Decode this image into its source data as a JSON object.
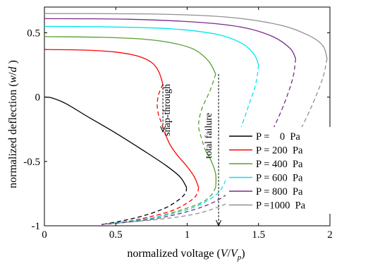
{
  "chart_data": {
    "type": "line",
    "title": "",
    "xlabel": "normalized voltage (V/V_p)",
    "xlabel_parts": {
      "prefix": "normalized voltage (",
      "var1": "V",
      "slash": "/",
      "var2": "V",
      "sub": "p",
      "suffix": ")"
    },
    "ylabel": "normalized deflection (w/d)",
    "ylabel_parts": {
      "prefix": "normalized deflection (",
      "var1": "w",
      "slash": "/",
      "var2": "d",
      "suffix": " )"
    },
    "xlim": [
      0,
      2
    ],
    "ylim": [
      -1,
      0.7
    ],
    "xticks": [
      0,
      0.5,
      1,
      1.5,
      2
    ],
    "xtick_labels": [
      "0",
      "0.5",
      "1",
      "1.5",
      "2"
    ],
    "yticks": [
      -1,
      -0.5,
      0,
      0.5
    ],
    "ytick_labels": [
      "-1",
      "-0.5",
      "0",
      "0.5"
    ],
    "grid": false,
    "legend_position": "right",
    "series": [
      {
        "name": "P =    0  Pa",
        "color": "#000000",
        "stable": [
          [
            0,
            0
          ],
          [
            0.05,
            -0.005
          ],
          [
            0.15,
            -0.05
          ],
          [
            0.3,
            -0.15
          ],
          [
            0.5,
            -0.28
          ],
          [
            0.7,
            -0.42
          ],
          [
            0.85,
            -0.53
          ],
          [
            0.95,
            -0.62
          ],
          [
            0.995,
            -0.7
          ]
        ],
        "unstable": [
          [
            0.995,
            -0.7
          ],
          [
            0.99,
            -0.74
          ],
          [
            0.95,
            -0.79
          ],
          [
            0.85,
            -0.86
          ],
          [
            0.7,
            -0.92
          ],
          [
            0.55,
            -0.96
          ],
          [
            0.4,
            -0.99
          ]
        ]
      },
      {
        "name": "P = 200  Pa",
        "color": "#ff0000",
        "stable_top": [
          [
            0,
            0.37
          ],
          [
            0.3,
            0.365
          ],
          [
            0.5,
            0.35
          ],
          [
            0.65,
            0.32
          ],
          [
            0.75,
            0.27
          ],
          [
            0.8,
            0.2
          ],
          [
            0.83,
            0.1
          ]
        ],
        "unstable_mid": [
          [
            0.83,
            0.1
          ],
          [
            0.8,
            0.02
          ],
          [
            0.79,
            -0.06
          ],
          [
            0.8,
            -0.14
          ],
          [
            0.82,
            -0.2
          ],
          [
            0.84,
            -0.27
          ]
        ],
        "stable_bottom": [
          [
            0.84,
            -0.27
          ],
          [
            0.88,
            -0.37
          ],
          [
            0.93,
            -0.45
          ],
          [
            1.0,
            -0.54
          ],
          [
            1.05,
            -0.62
          ],
          [
            1.08,
            -0.7
          ]
        ],
        "unstable_tail": [
          [
            1.08,
            -0.7
          ],
          [
            1.07,
            -0.75
          ],
          [
            1.03,
            -0.8
          ],
          [
            0.9,
            -0.88
          ],
          [
            0.7,
            -0.94
          ],
          [
            0.55,
            -0.97
          ],
          [
            0.4,
            -0.99
          ]
        ]
      },
      {
        "name": "P = 400  Pa",
        "color": "#55a030",
        "stable_top": [
          [
            0,
            0.47
          ],
          [
            0.4,
            0.465
          ],
          [
            0.7,
            0.45
          ],
          [
            0.9,
            0.42
          ],
          [
            1.05,
            0.37
          ],
          [
            1.15,
            0.28
          ],
          [
            1.2,
            0.18
          ]
        ],
        "unstable_mid": [
          [
            1.2,
            0.18
          ],
          [
            1.16,
            0.05
          ],
          [
            1.1,
            -0.1
          ],
          [
            1.08,
            -0.22
          ],
          [
            1.1,
            -0.32
          ],
          [
            1.13,
            -0.42
          ]
        ],
        "stable_bottom": [
          [
            1.13,
            -0.42
          ],
          [
            1.17,
            -0.5
          ],
          [
            1.2,
            -0.6
          ],
          [
            1.2,
            -0.7
          ]
        ],
        "unstable_tail": [
          [
            1.2,
            -0.7
          ],
          [
            1.17,
            -0.76
          ],
          [
            1.1,
            -0.82
          ],
          [
            0.95,
            -0.88
          ],
          [
            0.75,
            -0.94
          ],
          [
            0.55,
            -0.97
          ],
          [
            0.4,
            -0.99
          ]
        ]
      },
      {
        "name": "P = 600  Pa",
        "color": "#00e5ee",
        "stable_top": [
          [
            0,
            0.55
          ],
          [
            0.5,
            0.545
          ],
          [
            0.9,
            0.53
          ],
          [
            1.2,
            0.49
          ],
          [
            1.38,
            0.42
          ],
          [
            1.47,
            0.33
          ],
          [
            1.5,
            0.25
          ]
        ],
        "unstable": [
          [
            1.5,
            0.25
          ],
          [
            1.48,
            0.1
          ],
          [
            1.42,
            -0.1
          ],
          [
            1.36,
            -0.3
          ],
          [
            1.32,
            -0.48
          ],
          [
            1.28,
            -0.62
          ],
          [
            1.22,
            -0.74
          ],
          [
            1.1,
            -0.83
          ],
          [
            0.95,
            -0.89
          ],
          [
            0.75,
            -0.94
          ],
          [
            0.55,
            -0.97
          ],
          [
            0.4,
            -0.99
          ]
        ]
      },
      {
        "name": "P = 800  Pa",
        "color": "#7b2a8a",
        "stable_top": [
          [
            0,
            0.61
          ],
          [
            0.6,
            0.605
          ],
          [
            1.1,
            0.58
          ],
          [
            1.4,
            0.54
          ],
          [
            1.6,
            0.47
          ],
          [
            1.72,
            0.38
          ],
          [
            1.76,
            0.3
          ]
        ],
        "unstable": [
          [
            1.76,
            0.3
          ],
          [
            1.74,
            0.15
          ],
          [
            1.68,
            -0.05
          ],
          [
            1.6,
            -0.25
          ],
          [
            1.5,
            -0.45
          ],
          [
            1.42,
            -0.6
          ],
          [
            1.32,
            -0.72
          ],
          [
            1.18,
            -0.82
          ],
          [
            1.0,
            -0.89
          ],
          [
            0.8,
            -0.94
          ],
          [
            0.6,
            -0.97
          ],
          [
            0.4,
            -0.99
          ]
        ]
      },
      {
        "name": "P =1000  Pa",
        "color": "#909090",
        "stable_top": [
          [
            0,
            0.65
          ],
          [
            0.8,
            0.645
          ],
          [
            1.3,
            0.62
          ],
          [
            1.65,
            0.56
          ],
          [
            1.85,
            0.48
          ],
          [
            1.95,
            0.4
          ],
          [
            1.98,
            0.3
          ]
        ],
        "unstable": [
          [
            1.98,
            0.3
          ],
          [
            1.95,
            0.15
          ],
          [
            1.88,
            -0.05
          ],
          [
            1.78,
            -0.28
          ],
          [
            1.66,
            -0.48
          ],
          [
            1.55,
            -0.62
          ],
          [
            1.42,
            -0.74
          ],
          [
            1.25,
            -0.84
          ],
          [
            1.05,
            -0.91
          ],
          [
            0.8,
            -0.95
          ],
          [
            0.6,
            -0.97
          ],
          [
            0.4,
            -0.99
          ]
        ]
      }
    ],
    "annotations": [
      {
        "text": "snap-through",
        "arrow_x": 0.83,
        "arrow_from": 0.1,
        "arrow_to": -0.27,
        "text_x": 0.88,
        "text_y": -0.1
      },
      {
        "text": "total failure",
        "arrow_x": 1.22,
        "arrow_from": 0.18,
        "arrow_to": -1.0,
        "text_x": 1.17,
        "text_y": -0.3
      }
    ]
  }
}
